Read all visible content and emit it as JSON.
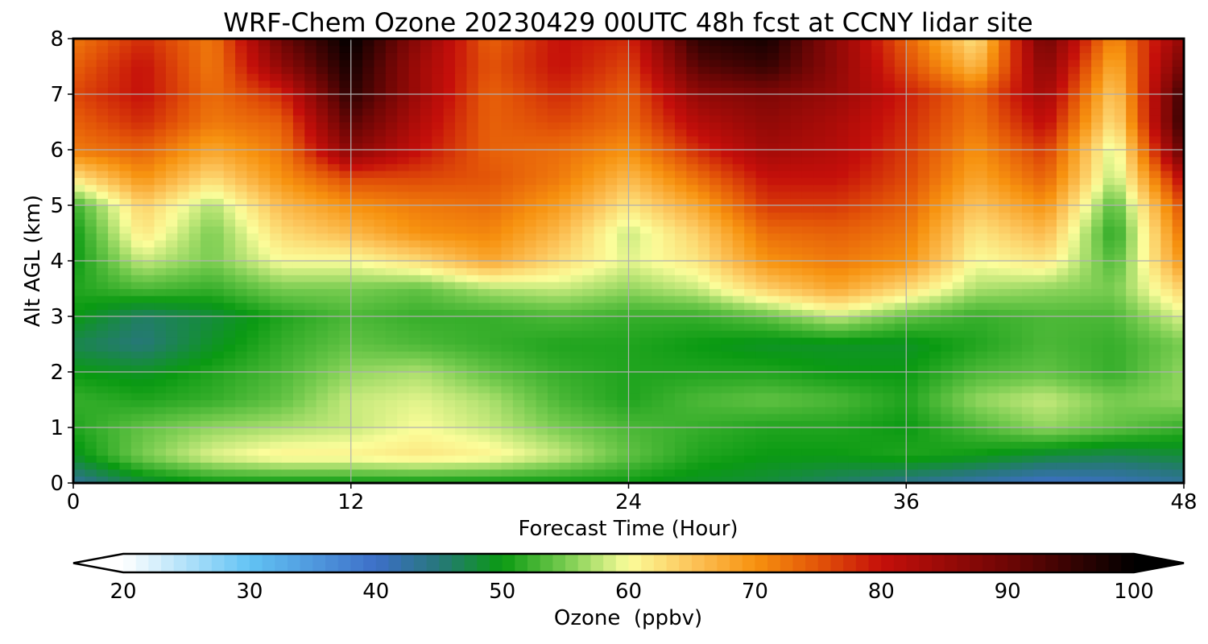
{
  "chart_data": {
    "type": "heatmap",
    "title": "WRF-Chem Ozone  20230429 00UTC 48h fcst at CCNY lidar site",
    "xlabel": "Forecast Time (Hour)",
    "ylabel": "Alt AGL (km)",
    "xlim": [
      0,
      48
    ],
    "ylim": [
      0,
      8
    ],
    "xticks": [
      0,
      12,
      24,
      36,
      48
    ],
    "yticks": [
      0,
      1,
      2,
      3,
      4,
      5,
      6,
      7,
      8
    ],
    "grid": true,
    "colorbar": {
      "label": "Ozone  (ppbv)",
      "min": 20,
      "max": 100,
      "ticks": [
        20,
        30,
        40,
        50,
        60,
        70,
        80,
        90,
        100
      ],
      "extend": "both",
      "stops": [
        {
          "v": 20,
          "c": "#ffffff"
        },
        {
          "v": 30,
          "c": "#62c3f4"
        },
        {
          "v": 40,
          "c": "#3d6fc8"
        },
        {
          "v": 45,
          "c": "#27777a"
        },
        {
          "v": 50,
          "c": "#0a9a12"
        },
        {
          "v": 55,
          "c": "#78cc50"
        },
        {
          "v": 60,
          "c": "#fbfd9a"
        },
        {
          "v": 65,
          "c": "#fcc45a"
        },
        {
          "v": 70,
          "c": "#f7920f"
        },
        {
          "v": 75,
          "c": "#e35508"
        },
        {
          "v": 80,
          "c": "#c50f0a"
        },
        {
          "v": 90,
          "c": "#6e0605"
        },
        {
          "v": 100,
          "c": "#000000"
        }
      ]
    },
    "x": [
      0,
      3,
      6,
      9,
      12,
      15,
      18,
      21,
      24,
      27,
      30,
      33,
      36,
      39,
      42,
      45,
      48
    ],
    "y": [
      0,
      0.5,
      1,
      1.5,
      2,
      2.5,
      3,
      3.5,
      4,
      4.5,
      5,
      5.5,
      6,
      6.5,
      7,
      7.5,
      8
    ],
    "z": [
      [
        43,
        48,
        50,
        50,
        50,
        50,
        50,
        50,
        50,
        49,
        48,
        46,
        44,
        42,
        40,
        41,
        43
      ],
      [
        49,
        55,
        59,
        61,
        61,
        62,
        61,
        58,
        54,
        51,
        50,
        50,
        51,
        50,
        48,
        47,
        48
      ],
      [
        51,
        54,
        56,
        57,
        58,
        60,
        58,
        55,
        53,
        52,
        51,
        51,
        50,
        53,
        56,
        54,
        52
      ],
      [
        52,
        51,
        52,
        54,
        58,
        59,
        57,
        53,
        51,
        53,
        54,
        53,
        51,
        56,
        58,
        55,
        56
      ],
      [
        50,
        49,
        51,
        53,
        56,
        57,
        54,
        52,
        51,
        51,
        51,
        50,
        50,
        53,
        54,
        52,
        56
      ],
      [
        47,
        45,
        49,
        52,
        54,
        53,
        52,
        51,
        51,
        50,
        49,
        49,
        49,
        51,
        53,
        52,
        55
      ],
      [
        50,
        46,
        48,
        51,
        53,
        52,
        52,
        53,
        52,
        52,
        54,
        58,
        54,
        52,
        53,
        53,
        59
      ],
      [
        51,
        53,
        52,
        55,
        55,
        54,
        57,
        58,
        56,
        58,
        64,
        68,
        63,
        57,
        56,
        55,
        64
      ],
      [
        50,
        58,
        55,
        60,
        60,
        63,
        68,
        63,
        59,
        62,
        70,
        72,
        70,
        60,
        62,
        53,
        70
      ],
      [
        50,
        62,
        55,
        63,
        66,
        70,
        71,
        66,
        58,
        64,
        73,
        74,
        72,
        62,
        66,
        51,
        73
      ],
      [
        52,
        64,
        57,
        66,
        70,
        72,
        73,
        69,
        62,
        68,
        77,
        77,
        74,
        65,
        70,
        53,
        76
      ],
      [
        62,
        70,
        63,
        70,
        76,
        76,
        75,
        72,
        66,
        73,
        80,
        80,
        76,
        68,
        74,
        57,
        82
      ],
      [
        72,
        74,
        68,
        72,
        87,
        80,
        74,
        73,
        70,
        78,
        84,
        82,
        77,
        70,
        77,
        58,
        92
      ],
      [
        74,
        78,
        72,
        74,
        92,
        82,
        74,
        76,
        73,
        82,
        86,
        83,
        78,
        72,
        81,
        62,
        96
      ],
      [
        76,
        80,
        73,
        78,
        96,
        84,
        74,
        78,
        74,
        86,
        88,
        85,
        79,
        73,
        84,
        64,
        95
      ],
      [
        74,
        80,
        72,
        86,
        98,
        84,
        75,
        80,
        76,
        92,
        95,
        86,
        76,
        66,
        87,
        67,
        90
      ],
      [
        72,
        78,
        72,
        90,
        100,
        86,
        74,
        80,
        78,
        96,
        98,
        86,
        74,
        62,
        90,
        70,
        86
      ]
    ]
  }
}
